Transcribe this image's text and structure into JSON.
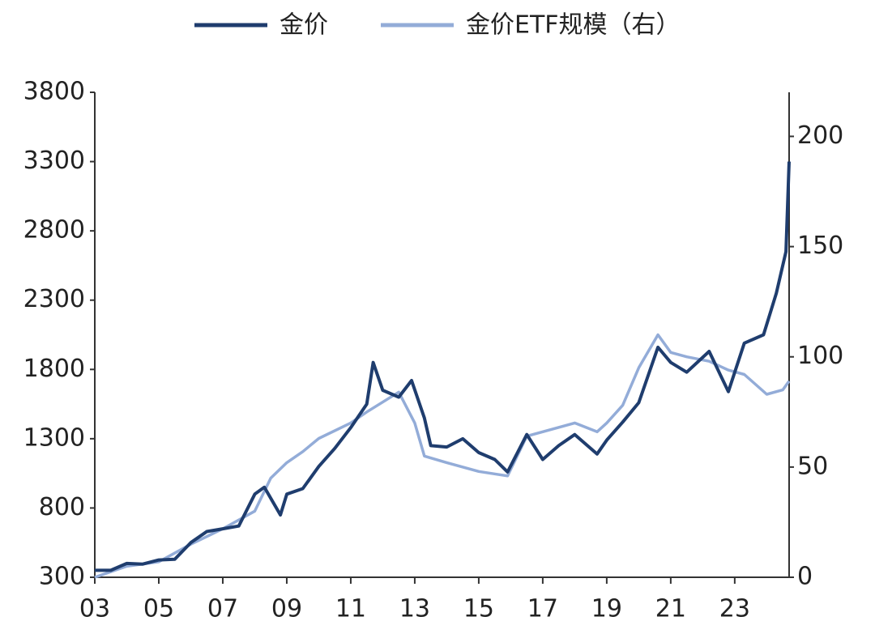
{
  "chart_data": {
    "type": "line",
    "series": [
      {
        "name": "金价",
        "color": "#1f3d6e",
        "x": [
          2003.0,
          2003.5,
          2004.0,
          2004.5,
          2005.0,
          2005.5,
          2006.0,
          2006.5,
          2007.0,
          2007.5,
          2008.0,
          2008.3,
          2008.8,
          2009.0,
          2009.5,
          2010.0,
          2010.5,
          2011.0,
          2011.5,
          2011.7,
          2012.0,
          2012.5,
          2012.9,
          2013.3,
          2013.5,
          2014.0,
          2014.5,
          2015.0,
          2015.5,
          2015.9,
          2016.5,
          2017.0,
          2017.5,
          2018.0,
          2018.7,
          2019.0,
          2019.5,
          2020.0,
          2020.6,
          2021.0,
          2021.5,
          2022.2,
          2022.8,
          2023.3,
          2023.9,
          2024.3,
          2024.6,
          2024.7
        ],
        "values": [
          350,
          350,
          400,
          395,
          425,
          430,
          550,
          630,
          650,
          670,
          900,
          950,
          750,
          900,
          940,
          1100,
          1230,
          1380,
          1550,
          1850,
          1650,
          1600,
          1720,
          1450,
          1250,
          1240,
          1300,
          1200,
          1150,
          1060,
          1330,
          1150,
          1250,
          1330,
          1190,
          1290,
          1420,
          1560,
          1960,
          1850,
          1780,
          1930,
          1640,
          1990,
          2050,
          2350,
          2650,
          3300
        ]
      },
      {
        "name": "金价ETF规模（右）",
        "color": "#93acd8",
        "axis": "y2",
        "x": [
          2003.0,
          2004.0,
          2005.0,
          2006.0,
          2007.0,
          2008.0,
          2008.5,
          2009.0,
          2009.5,
          2010.0,
          2011.0,
          2011.5,
          2012.5,
          2013.0,
          2013.3,
          2014.0,
          2015.0,
          2015.9,
          2016.5,
          2017.0,
          2018.0,
          2018.7,
          2019.0,
          2019.5,
          2020.0,
          2020.6,
          2021.0,
          2021.5,
          2022.2,
          2022.8,
          2023.3,
          2024.0,
          2024.5,
          2024.7
        ],
        "values": [
          0,
          5,
          7,
          15,
          22,
          30,
          45,
          52,
          57,
          63,
          70,
          75,
          84,
          70,
          55,
          52,
          48,
          46,
          64,
          66,
          70,
          66,
          70,
          78,
          95,
          110,
          102,
          100,
          98,
          94,
          92,
          83,
          85,
          89
        ]
      }
    ],
    "xlim": [
      2003,
      2024.7
    ],
    "xticks": [
      {
        "value": 2003,
        "label": "03"
      },
      {
        "value": 2005,
        "label": "05"
      },
      {
        "value": 2007,
        "label": "07"
      },
      {
        "value": 2009,
        "label": "09"
      },
      {
        "value": 2011,
        "label": "11"
      },
      {
        "value": 2013,
        "label": "13"
      },
      {
        "value": 2015,
        "label": "15"
      },
      {
        "value": 2017,
        "label": "17"
      },
      {
        "value": 2019,
        "label": "19"
      },
      {
        "value": 2021,
        "label": "21"
      },
      {
        "value": 2023,
        "label": "23"
      }
    ],
    "ylim": [
      300,
      3800
    ],
    "yticks": [
      300,
      800,
      1300,
      1800,
      2300,
      2800,
      3300,
      3800
    ],
    "y2lim": [
      0,
      220
    ],
    "y2ticks": [
      0,
      50,
      100,
      150,
      200
    ],
    "grid": false,
    "legend": "top"
  }
}
